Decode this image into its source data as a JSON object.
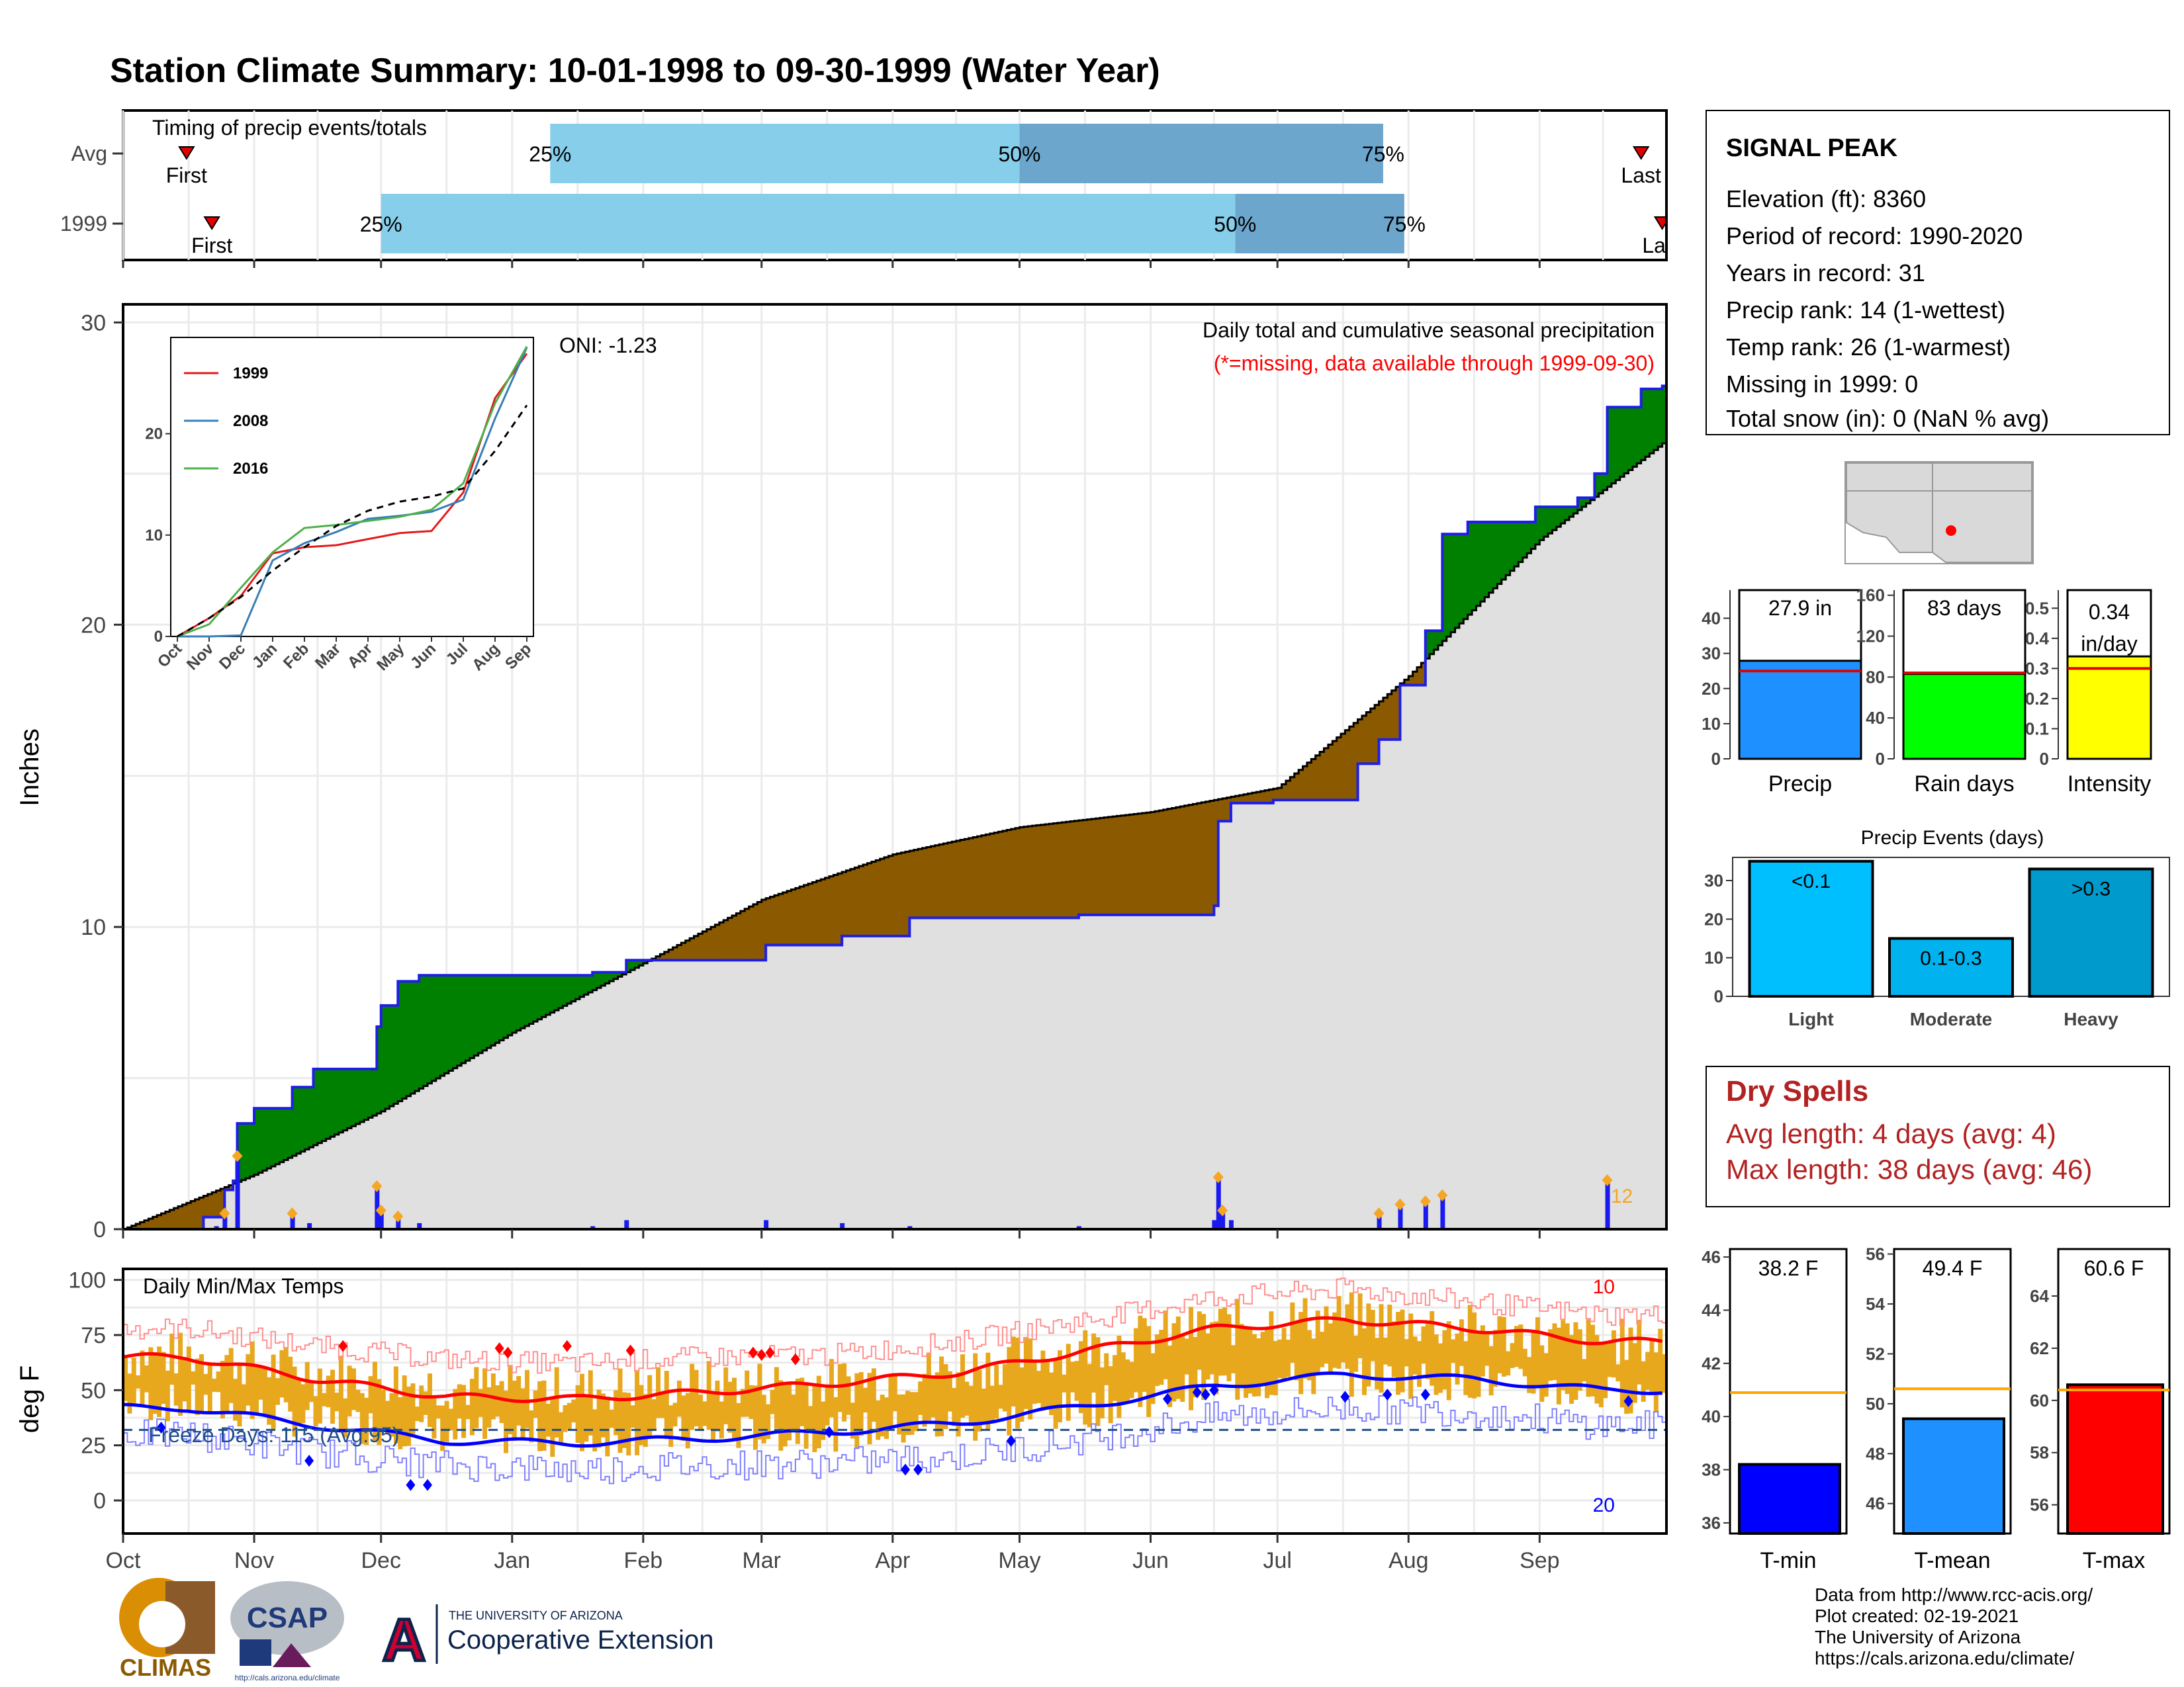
{
  "title": "Station Climate Summary: 10-01-1998 to 09-30-1999 (Water Year)",
  "colors": {
    "title": "#8B2500",
    "cum_year": "#1E1EE6",
    "cum_avg_fill": "#E0E0E0",
    "above_fill": "#008000",
    "below_fill": "#8B5A00",
    "daily_bar": "#1A1AF0",
    "event_marker": "#F5A623",
    "tmax_line": "#FF0000",
    "tmin_line": "#0000FF",
    "tminmax_bar": "#E8A81E",
    "timing_light": "#87CEEB",
    "timing_dark": "#6CA6CD",
    "dry_spell": "#B22222",
    "freeze_line": "#1F4E8C"
  },
  "timing": {
    "label": "Timing of precip events/totals",
    "rows": [
      {
        "name": "Avg",
        "first_label": "First",
        "last_label": "Last",
        "first": "1998-10-16",
        "p25": "1999-01-10",
        "p50": "1999-05-01",
        "p75": "1999-07-26",
        "last": "1999-09-25",
        "m25": "25%",
        "m50": "50%",
        "m75": "75%"
      },
      {
        "name": "1999",
        "first_label": "First",
        "last_label": "Last",
        "first": "1998-10-22",
        "p25": "1998-12-01",
        "p50": "1999-06-21",
        "p75": "1999-07-31",
        "last": "1999-09-30",
        "m25": "25%",
        "m50": "50%",
        "m75": "75%"
      }
    ]
  },
  "precip_panel": {
    "ylabel": "Inches",
    "caption1": "Daily total and cumulative seasonal precipitation",
    "caption2": "(*=missing, data available through 1999-09-30)",
    "oni": "ONI: -1.23",
    "corner_value": "12",
    "yticks": [
      0,
      10,
      20,
      30
    ]
  },
  "inset": {
    "legend": [
      "1999",
      "2008",
      "2016"
    ],
    "colors": [
      "#E41A1C",
      "#377EB8",
      "#4DAF4A"
    ],
    "yticks": [
      0,
      10,
      20
    ],
    "months": [
      "Oct",
      "Nov",
      "Dec",
      "Jan",
      "Feb",
      "Mar",
      "Apr",
      "May",
      "Jun",
      "Jul",
      "Aug",
      "Sep"
    ]
  },
  "temp_panel": {
    "ylabel": "deg F",
    "label": "Daily Min/Max Temps",
    "freeze": "Freeze Days: 115 (Avg:95)",
    "top_count": "10",
    "bottom_count": "20",
    "yticks": [
      0,
      25,
      50,
      75,
      100
    ],
    "freeze_temp": 32
  },
  "x_months": [
    "Oct",
    "Nov",
    "Dec",
    "Jan",
    "Feb",
    "Mar",
    "Apr",
    "May",
    "Jun",
    "Jul",
    "Aug",
    "Sep"
  ],
  "station": {
    "name": "SIGNAL PEAK",
    "lines": [
      "Elevation (ft): 8360",
      "Period of record: 1990-2020",
      "Years in record: 31",
      "Precip rank: 14 (1-wettest)",
      "Temp rank: 26 (1-warmest)",
      "Missing in 1999: 0",
      "Total snow (in): 0 (NaN % avg)"
    ]
  },
  "summary_bars": [
    {
      "label": "Precip",
      "value_label": "27.9 in",
      "value": 27.9,
      "avg": 25.0,
      "ymax": 48,
      "ticks": [
        0,
        10,
        20,
        30,
        40
      ],
      "color": "#1E90FF"
    },
    {
      "label": "Rain days",
      "value_label": "83 days",
      "value": 83,
      "avg": 84,
      "ymax": 165,
      "ticks": [
        0,
        40,
        80,
        120,
        160
      ],
      "color": "#00FF00"
    },
    {
      "label": "Intensity",
      "value_label": "0.34 in/day",
      "value": 0.34,
      "avg": 0.3,
      "ymax": 0.56,
      "ticks": [
        0.0,
        0.1,
        0.2,
        0.3,
        0.4,
        0.5
      ],
      "color": "#FFFF00"
    }
  ],
  "events": {
    "title": "Precip Events (days)",
    "categories": [
      "Light",
      "Moderate",
      "Heavy"
    ],
    "values": [
      35,
      15,
      33
    ],
    "labels": [
      "<0.1",
      "0.1-0.3",
      ">0.3"
    ],
    "colors": [
      "#00BFFF",
      "#00B2EE",
      "#009ACD"
    ],
    "ticks": [
      0,
      10,
      20,
      30
    ]
  },
  "dry_spells": {
    "title": "Dry Spells",
    "avg_length": "Avg length: 4 days (avg: 4)",
    "max_length": "Max length: 38 days (avg: 46)"
  },
  "temp_bars": [
    {
      "label": "T-min",
      "value_label": "38.2 F",
      "value": 38.2,
      "avg": 40.9,
      "ymin": 35.6,
      "ymax": 46.3,
      "ticks": [
        36,
        38,
        40,
        42,
        44,
        46
      ],
      "color": "#0000FF"
    },
    {
      "label": "T-mean",
      "value_label": "49.4 F",
      "value": 49.4,
      "avg": 50.6,
      "ymin": 44.8,
      "ymax": 56.2,
      "ticks": [
        46,
        48,
        50,
        52,
        54,
        56
      ],
      "color": "#1E90FF"
    },
    {
      "label": "T-max",
      "value_label": "60.6 F",
      "value": 60.6,
      "avg": 60.4,
      "ymin": 54.9,
      "ymax": 65.8,
      "ticks": [
        56,
        58,
        60,
        62,
        64
      ],
      "color": "#FF0000"
    }
  ],
  "footer": {
    "credits": [
      "Data from http://www.rcc-acis.org/",
      "Plot created: 02-19-2021",
      "The University of Arizona",
      "https://cals.arizona.edu/climate/"
    ],
    "logo_climas": "CLIMAS",
    "logo_csap": "CSAP",
    "logo_csap_url": "http://cals.arizona.edu/climate",
    "ua_small": "THE UNIVERSITY OF ARIZONA",
    "ua_big": "Cooperative Extension"
  },
  "chart_data": [
    {
      "type": "area",
      "title": "Daily total and cumulative seasonal precipitation",
      "ylabel": "Inches",
      "ylim": [
        0,
        30
      ],
      "x_range": [
        "1998-10-01",
        "1999-09-30"
      ],
      "series": [
        {
          "name": "1999",
          "kind": "cumulative",
          "points": [
            [
              "1998-10-01",
              0
            ],
            [
              "1998-10-20",
              0.4
            ],
            [
              "1998-10-25",
              1.3
            ],
            [
              "1998-10-27",
              1.6
            ],
            [
              "1998-10-28",
              3.5
            ],
            [
              "1998-11-01",
              4.0
            ],
            [
              "1998-11-10",
              4.7
            ],
            [
              "1998-11-15",
              5.3
            ],
            [
              "1998-11-29",
              5.3
            ],
            [
              "1998-11-30",
              6.7
            ],
            [
              "1998-12-01",
              7.4
            ],
            [
              "1998-12-05",
              8.2
            ],
            [
              "1998-12-10",
              8.4
            ],
            [
              "1999-01-20",
              8.5
            ],
            [
              "1999-01-28",
              8.9
            ],
            [
              "1999-02-10",
              8.9
            ],
            [
              "1999-03-02",
              9.4
            ],
            [
              "1999-03-20",
              9.7
            ],
            [
              "1999-04-05",
              10.3
            ],
            [
              "1999-05-01",
              10.3
            ],
            [
              "1999-05-15",
              10.4
            ],
            [
              "1999-06-10",
              10.4
            ],
            [
              "1999-06-16",
              10.7
            ],
            [
              "1999-06-17",
              13.5
            ],
            [
              "1999-06-20",
              14.1
            ],
            [
              "1999-06-30",
              14.2
            ],
            [
              "1999-07-20",
              15.4
            ],
            [
              "1999-07-25",
              16.2
            ],
            [
              "1999-07-30",
              18.0
            ],
            [
              "1999-08-05",
              19.8
            ],
            [
              "1999-08-09",
              23.0
            ],
            [
              "1999-08-15",
              23.4
            ],
            [
              "1999-08-31",
              23.9
            ],
            [
              "1999-09-10",
              24.2
            ],
            [
              "1999-09-14",
              25.0
            ],
            [
              "1999-09-17",
              27.2
            ],
            [
              "1999-09-25",
              27.8
            ],
            [
              "1999-09-30",
              27.9
            ]
          ]
        },
        {
          "name": "Avg",
          "kind": "cumulative",
          "points": [
            [
              "1998-10-01",
              0
            ],
            [
              "1998-11-01",
              1.8
            ],
            [
              "1998-12-01",
              3.9
            ],
            [
              "1999-01-01",
              6.5
            ],
            [
              "1999-02-01",
              8.8
            ],
            [
              "1999-03-01",
              10.9
            ],
            [
              "1999-04-01",
              12.4
            ],
            [
              "1999-05-01",
              13.3
            ],
            [
              "1999-06-01",
              13.8
            ],
            [
              "1999-07-01",
              14.6
            ],
            [
              "1999-08-01",
              18.3
            ],
            [
              "1999-09-01",
              22.8
            ],
            [
              "1999-09-30",
              26.0
            ]
          ]
        },
        {
          "name": "Daily",
          "kind": "bar",
          "points": [
            [
              "1998-10-23",
              0.1
            ],
            [
              "1998-10-25",
              0.5
            ],
            [
              "1998-10-28",
              2.4
            ],
            [
              "1998-11-10",
              0.5
            ],
            [
              "1998-11-14",
              0.2
            ],
            [
              "1998-11-30",
              1.4
            ],
            [
              "1998-12-01",
              0.6
            ],
            [
              "1998-12-05",
              0.4
            ],
            [
              "1998-12-10",
              0.2
            ],
            [
              "1999-01-20",
              0.1
            ],
            [
              "1999-01-28",
              0.3
            ],
            [
              "1999-03-02",
              0.3
            ],
            [
              "1999-03-20",
              0.2
            ],
            [
              "1999-04-05",
              0.1
            ],
            [
              "1999-05-15",
              0.1
            ],
            [
              "1999-06-16",
              0.3
            ],
            [
              "1999-06-17",
              1.7
            ],
            [
              "1999-06-18",
              0.6
            ],
            [
              "1999-06-20",
              0.3
            ],
            [
              "1999-07-25",
              0.5
            ],
            [
              "1999-07-30",
              0.8
            ],
            [
              "1999-08-05",
              0.9
            ],
            [
              "1999-08-09",
              1.1
            ],
            [
              "1999-09-17",
              1.6
            ]
          ]
        }
      ]
    },
    {
      "type": "line",
      "title": "Cumulative precipitation comparison",
      "ylim": [
        0,
        29
      ],
      "series": [
        {
          "name": "1999",
          "values": [
            0,
            1.8,
            4.0,
            8.2,
            8.8,
            9.0,
            9.6,
            10.2,
            10.4,
            14.2,
            23.5,
            27.9
          ]
        },
        {
          "name": "2008",
          "values": [
            0,
            0,
            0.1,
            7.5,
            9.2,
            10.3,
            11.6,
            11.9,
            12.3,
            13.5,
            21.5,
            28.5
          ]
        },
        {
          "name": "2016",
          "values": [
            0,
            1.2,
            4.8,
            8.3,
            10.7,
            11.0,
            11.4,
            11.8,
            12.5,
            15.1,
            23.0,
            28.6
          ]
        },
        {
          "name": "Avg",
          "values": [
            0,
            1.8,
            3.9,
            6.5,
            8.8,
            10.9,
            12.4,
            13.3,
            13.8,
            14.6,
            18.3,
            22.8
          ]
        }
      ]
    },
    {
      "type": "line",
      "title": "Daily Min/Max Temps",
      "ylabel": "deg F",
      "ylim": [
        -15,
        100
      ],
      "months": [
        "Oct",
        "Nov",
        "Dec",
        "Jan",
        "Feb",
        "Mar",
        "Apr",
        "May",
        "Jun",
        "Jul",
        "Aug",
        "Sep"
      ],
      "series": [
        {
          "name": "Avg Tmax",
          "values": [
            65,
            55,
            47,
            46,
            49,
            53,
            58,
            68,
            78,
            82,
            78,
            72
          ]
        },
        {
          "name": "Avg Tmin",
          "values": [
            42,
            34,
            27,
            26,
            28,
            31,
            35,
            43,
            52,
            57,
            55,
            50
          ]
        },
        {
          "name": "Daily Tmax",
          "values": [
            66,
            58,
            52,
            50,
            53,
            54,
            60,
            70,
            80,
            84,
            78,
            72
          ]
        },
        {
          "name": "Daily Tmin",
          "values": [
            44,
            36,
            30,
            28,
            30,
            31,
            34,
            42,
            52,
            56,
            54,
            48
          ]
        }
      ]
    },
    {
      "type": "bar",
      "title": "Precip Events (days)",
      "categories": [
        "Light",
        "Moderate",
        "Heavy"
      ],
      "values": [
        35,
        15,
        33
      ]
    }
  ]
}
